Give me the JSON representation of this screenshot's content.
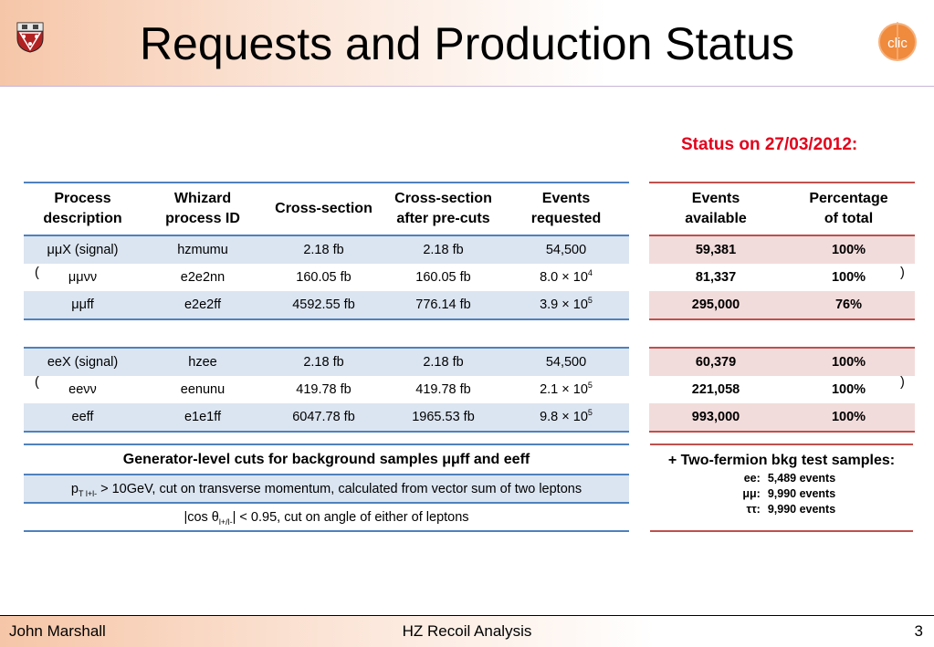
{
  "header": {
    "title": "Requests and Production Status",
    "crest_icon": "university-crest-icon",
    "logo_text": "clic"
  },
  "status_date": "Status on 27/03/2012:",
  "main_table": {
    "columns": [
      "Process description",
      "Whizard process ID",
      "Cross-section",
      "Cross-section after pre-cuts",
      "Events requested"
    ],
    "col_lines": [
      [
        "Process",
        "description"
      ],
      [
        "Whizard",
        "process ID"
      ],
      [
        "Cross-section"
      ],
      [
        "Cross-section",
        "after pre-cuts"
      ],
      [
        "Events",
        "requested"
      ]
    ],
    "rows": [
      {
        "process": "μμX (signal)",
        "id": "hzmumu",
        "xsec": "2.18 fb",
        "xsec_cut": "2.18 fb",
        "events_base": "54,500",
        "events_exp": ""
      },
      {
        "process": "μμνν",
        "id": "e2e2nn",
        "xsec": "160.05 fb",
        "xsec_cut": "160.05 fb",
        "events_base": "8.0 × 10",
        "events_exp": "4"
      },
      {
        "process": "μμff",
        "id": "e2e2ff",
        "xsec": "4592.55 fb",
        "xsec_cut": "776.14 fb",
        "events_base": "3.9 × 10",
        "events_exp": "5"
      },
      {
        "process": "eeX (signal)",
        "id": "hzee",
        "xsec": "2.18 fb",
        "xsec_cut": "2.18 fb",
        "events_base": "54,500",
        "events_exp": ""
      },
      {
        "process": "eeνν",
        "id": "eenunu",
        "xsec": "419.78 fb",
        "xsec_cut": "419.78 fb",
        "events_base": "2.1 × 10",
        "events_exp": "5"
      },
      {
        "process": "eeff",
        "id": "e1e1ff",
        "xsec": "6047.78 fb",
        "xsec_cut": "1965.53 fb",
        "events_base": "9.8 × 10",
        "events_exp": "5"
      }
    ],
    "paren_open": "(",
    "paren_close": ")"
  },
  "side_table": {
    "col_lines": [
      [
        "Events",
        "available"
      ],
      [
        "Percentage",
        "of total"
      ]
    ],
    "rows": [
      {
        "available": "59,381",
        "pct": "100%"
      },
      {
        "available": "81,337",
        "pct": "100%"
      },
      {
        "available": "295,000",
        "pct": "76%"
      },
      {
        "available": "60,379",
        "pct": "100%"
      },
      {
        "available": "221,058",
        "pct": "100%"
      },
      {
        "available": "993,000",
        "pct": "100%"
      }
    ]
  },
  "cuts_table": {
    "title_prefix": "Generator-level cuts for background samples ",
    "title_mid": "μμff",
    "title_suffix": " and eeff",
    "row1_p": "p",
    "row1_sub": "T l+l-",
    "row1_text": " > 10GeV, cut on transverse momentum, calculated from vector sum of two leptons",
    "row2_prefix": "|cos θ",
    "row2_sub": "l+/l-",
    "row2_text": "| < 0.95, cut on angle of either of leptons"
  },
  "bkg_box": {
    "title": "+ Two-fermion bkg test samples:",
    "rows": [
      {
        "label": "ee:",
        "value": "5,489 events"
      },
      {
        "label": "μμ:",
        "value": "9,990 events"
      },
      {
        "label": "ττ:",
        "value": "9,990 events"
      }
    ]
  },
  "footer": {
    "author": "John Marshall",
    "talk": "HZ Recoil Analysis",
    "page": "3"
  },
  "colors": {
    "accent_blue": "#4f81bd",
    "accent_red": "#c0504d",
    "status_red": "#e3001b",
    "row_blue": "#dbe5f1",
    "row_pink": "#f2dcdb"
  }
}
